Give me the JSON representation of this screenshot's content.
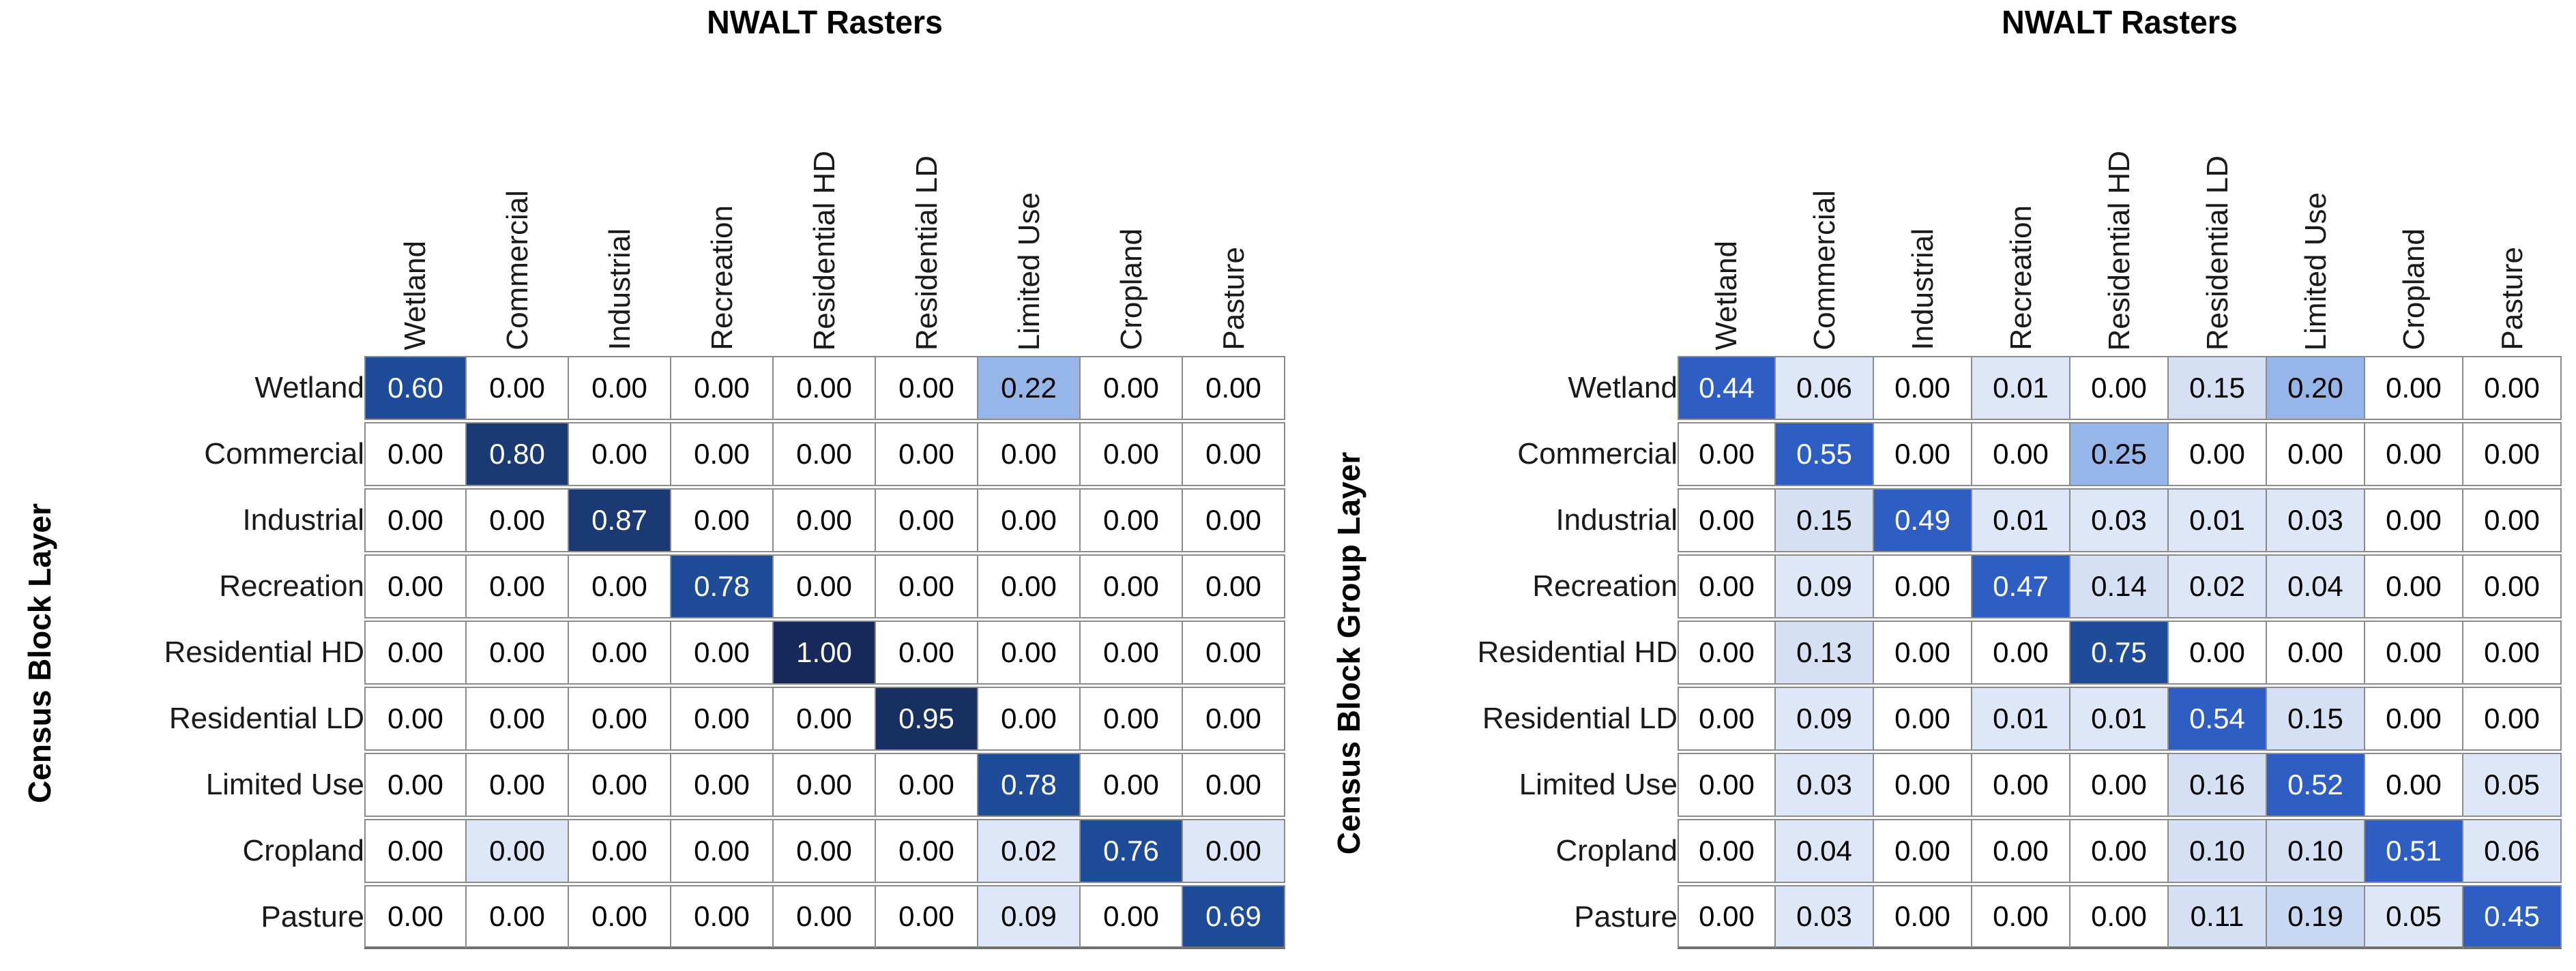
{
  "page": {
    "background": "#ffffff"
  },
  "palette": {
    "zero": "#FFFFFF",
    "tint1": "#DEE7F7",
    "tint2": "#D5E0F5",
    "tint3": "#C7D8F2",
    "light": "#96B5E9",
    "royal": "#2E5EC4",
    "medium": "#1F4C99",
    "dark": "#1B3A74",
    "darker": "#182F62",
    "darkest": "#17295B",
    "gridline": "#8c8c8c",
    "value_text_dark": "#000000",
    "value_text_light": "#FFFFFF"
  },
  "chart_data": [
    {
      "type": "heatmap",
      "title": "NWALT Rasters",
      "ylabel": "Census Block Layer",
      "columns": [
        "Wetland",
        "Commercial",
        "Industrial",
        "Recreation",
        "Residential HD",
        "Residential LD",
        "Limited Use",
        "Cropland",
        "Pasture"
      ],
      "rows": [
        "Wetland",
        "Commercial",
        "Industrial",
        "Recreation",
        "Residential HD",
        "Residential LD",
        "Limited Use",
        "Cropland",
        "Pasture"
      ],
      "values": [
        [
          0.6,
          0.0,
          0.0,
          0.0,
          0.0,
          0.0,
          0.22,
          0.0,
          0.0
        ],
        [
          0.0,
          0.8,
          0.0,
          0.0,
          0.0,
          0.0,
          0.0,
          0.0,
          0.0
        ],
        [
          0.0,
          0.0,
          0.87,
          0.0,
          0.0,
          0.0,
          0.0,
          0.0,
          0.0
        ],
        [
          0.0,
          0.0,
          0.0,
          0.78,
          0.0,
          0.0,
          0.0,
          0.0,
          0.0
        ],
        [
          0.0,
          0.0,
          0.0,
          0.0,
          1.0,
          0.0,
          0.0,
          0.0,
          0.0
        ],
        [
          0.0,
          0.0,
          0.0,
          0.0,
          0.0,
          0.95,
          0.0,
          0.0,
          0.0
        ],
        [
          0.0,
          0.0,
          0.0,
          0.0,
          0.0,
          0.0,
          0.78,
          0.0,
          0.0
        ],
        [
          0.0,
          0.0,
          0.0,
          0.0,
          0.0,
          0.0,
          0.02,
          0.76,
          0.0
        ],
        [
          0.0,
          0.0,
          0.0,
          0.0,
          0.0,
          0.0,
          0.09,
          0.0,
          0.69
        ]
      ],
      "value_format": "0.00",
      "tinted_zero_cells": [
        [
          7,
          1
        ],
        [
          7,
          8
        ]
      ],
      "grid": true,
      "legend": "none"
    },
    {
      "type": "heatmap",
      "title": "NWALT Rasters",
      "ylabel": "Census Block Group Layer",
      "columns": [
        "Wetland",
        "Commercial",
        "Industrial",
        "Recreation",
        "Residential HD",
        "Residential LD",
        "Limited Use",
        "Cropland",
        "Pasture"
      ],
      "rows": [
        "Wetland",
        "Commercial",
        "Industrial",
        "Recreation",
        "Residential HD",
        "Residential LD",
        "Limited Use",
        "Cropland",
        "Pasture"
      ],
      "values": [
        [
          0.44,
          0.06,
          0.0,
          0.01,
          0.0,
          0.15,
          0.2,
          0.0,
          0.0
        ],
        [
          0.0,
          0.55,
          0.0,
          0.0,
          0.25,
          0.0,
          0.0,
          0.0,
          0.0
        ],
        [
          0.0,
          0.15,
          0.49,
          0.01,
          0.03,
          0.01,
          0.03,
          0.0,
          0.0
        ],
        [
          0.0,
          0.09,
          0.0,
          0.47,
          0.14,
          0.02,
          0.04,
          0.0,
          0.0
        ],
        [
          0.0,
          0.13,
          0.0,
          0.0,
          0.75,
          0.0,
          0.0,
          0.0,
          0.0
        ],
        [
          0.0,
          0.09,
          0.0,
          0.01,
          0.01,
          0.54,
          0.15,
          0.0,
          0.0
        ],
        [
          0.0,
          0.03,
          0.0,
          0.0,
          0.0,
          0.16,
          0.52,
          0.0,
          0.05
        ],
        [
          0.0,
          0.04,
          0.0,
          0.0,
          0.0,
          0.1,
          0.1,
          0.51,
          0.06
        ],
        [
          0.0,
          0.03,
          0.0,
          0.0,
          0.0,
          0.11,
          0.19,
          0.05,
          0.45
        ]
      ],
      "value_format": "0.00",
      "tinted_zero_cells": [],
      "grid": true,
      "legend": "none"
    }
  ]
}
